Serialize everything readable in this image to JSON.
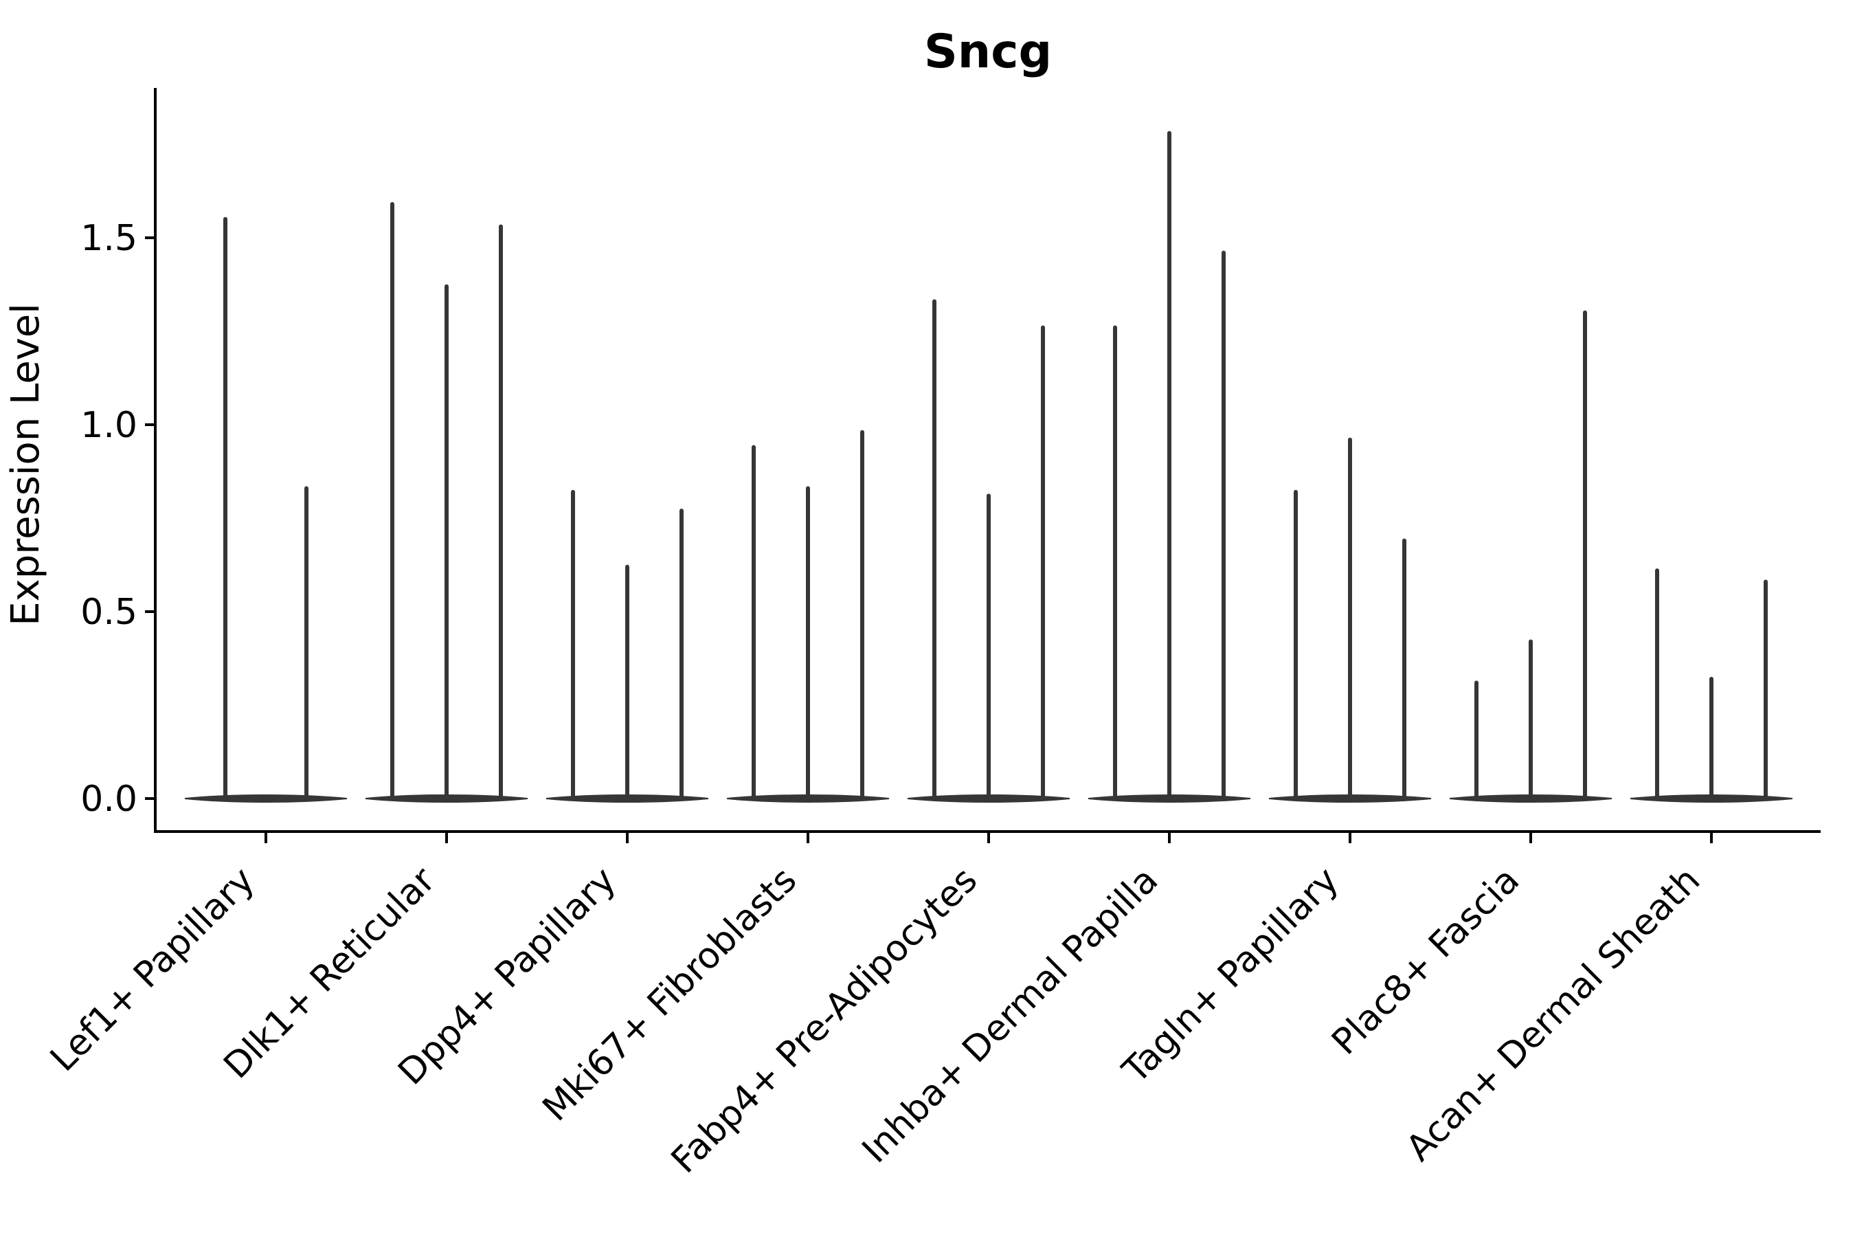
{
  "figure": {
    "background_color": "#ffffff",
    "axis_color": "#000000",
    "violin_color": "#363636"
  },
  "chart_data": {
    "type": "violin",
    "title": "Sncg",
    "xlabel": "",
    "ylabel": "Expression Level",
    "yticks": [
      0.0,
      0.5,
      1.0,
      1.5
    ],
    "ytick_labels": [
      "0.0",
      "0.5",
      "1.0",
      "1.5"
    ],
    "ylim": [
      -0.09,
      1.87
    ],
    "grid": false,
    "legend": false,
    "style_note": "violin plot; each violin is collapsed to a thin vertical spike with a flat wide base at expression 0",
    "categories": [
      "Lef1+ Papillary",
      "Dlk1+ Reticular",
      "Dpp4+ Papillary",
      "Mki67+ Fibroblasts",
      "Fabp4+ Pre-Adipocytes",
      "Inhba+ Dermal Papilla",
      "Tagln+ Papillary",
      "Plac8+ Fascia",
      "Acan+ Dermal Sheath"
    ],
    "series": [
      {
        "category": "Lef1+ Papillary",
        "violin_max_values": [
          1.55,
          0.83
        ]
      },
      {
        "category": "Dlk1+ Reticular",
        "violin_max_values": [
          1.59,
          1.37,
          1.53
        ]
      },
      {
        "category": "Dpp4+ Papillary",
        "violin_max_values": [
          0.82,
          0.62,
          0.77
        ]
      },
      {
        "category": "Mki67+ Fibroblasts",
        "violin_max_values": [
          0.94,
          0.83,
          0.98
        ]
      },
      {
        "category": "Fabp4+ Pre-Adipocytes",
        "violin_max_values": [
          1.33,
          0.81,
          1.26
        ]
      },
      {
        "category": "Inhba+ Dermal Papilla",
        "violin_max_values": [
          1.26,
          1.78,
          1.46
        ]
      },
      {
        "category": "Tagln+ Papillary",
        "violin_max_values": [
          0.82,
          0.96,
          0.69
        ]
      },
      {
        "category": "Plac8+ Fascia",
        "violin_max_values": [
          0.31,
          0.42,
          1.3
        ]
      },
      {
        "category": "Acan+ Dermal Sheath",
        "violin_max_values": [
          0.61,
          0.32,
          0.58
        ]
      }
    ]
  }
}
